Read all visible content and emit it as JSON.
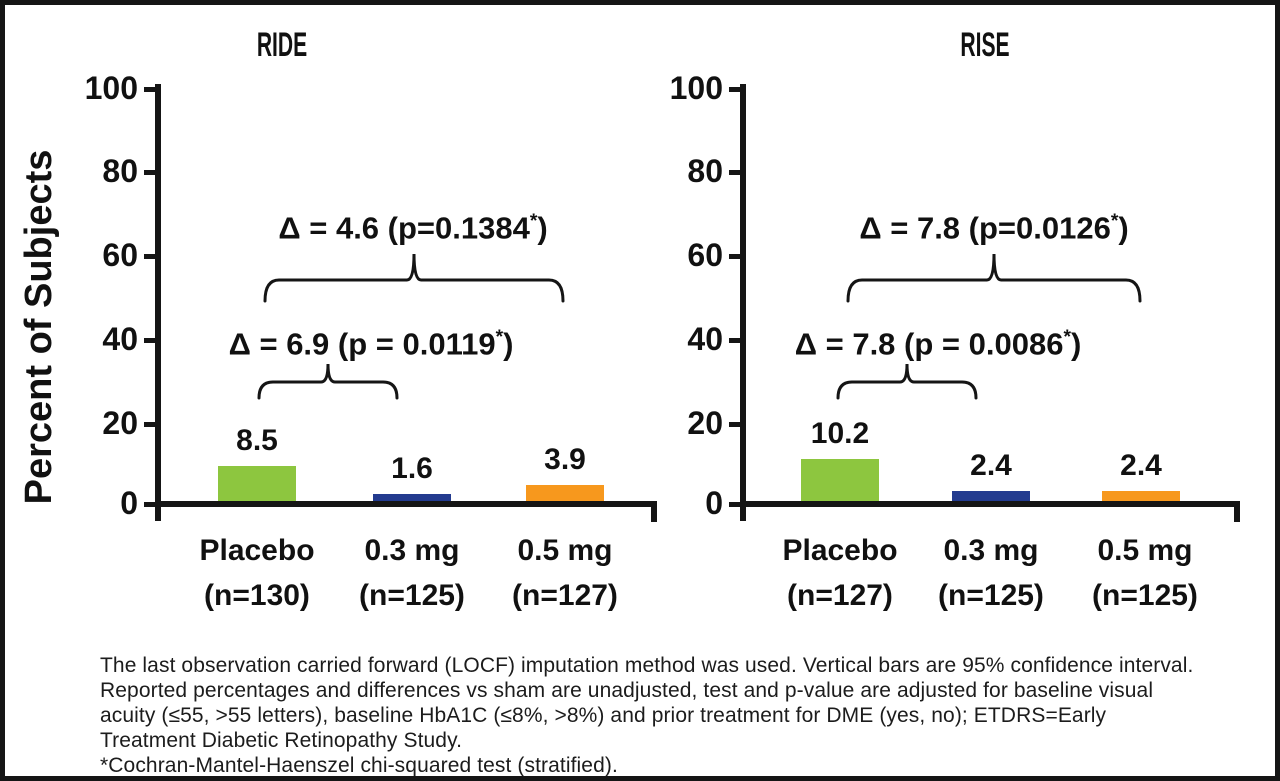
{
  "y_axis_label": "Percent of Subjects",
  "charts": [
    {
      "title": "RIDE",
      "y_ticks": [
        "100",
        "80",
        "60",
        "40",
        "20",
        "0"
      ],
      "annotations": {
        "overall": "Δ = 4.6 (p=0.1384*)",
        "pairwise": "Δ = 6.9 (p = 0.0119*)"
      },
      "bars": [
        {
          "group": "Placebo",
          "n": "(n=130)",
          "value": 8.5,
          "label": "8.5",
          "color": "#8DC63F"
        },
        {
          "group": "0.3 mg",
          "n": "(n=125)",
          "value": 1.6,
          "label": "1.6",
          "color": "#233B8F"
        },
        {
          "group": "0.5 mg",
          "n": "(n=127)",
          "value": 3.9,
          "label": "3.9",
          "color": "#F7981D"
        }
      ]
    },
    {
      "title": "RISE",
      "y_ticks": [
        "100",
        "80",
        "60",
        "40",
        "20",
        "0"
      ],
      "annotations": {
        "overall": "Δ = 7.8 (p=0.0126*)",
        "pairwise": "Δ = 7.8 (p = 0.0086*)"
      },
      "bars": [
        {
          "group": "Placebo",
          "n": "(n=127)",
          "value": 10.2,
          "label": "10.2",
          "color": "#8DC63F"
        },
        {
          "group": "0.3 mg",
          "n": "(n=125)",
          "value": 2.4,
          "label": "2.4",
          "color": "#233B8F"
        },
        {
          "group": "0.5 mg",
          "n": "(n=125)",
          "value": 2.4,
          "label": "2.4",
          "color": "#F7981D"
        }
      ]
    }
  ],
  "footnote": {
    "lines": [
      "The last observation carried forward (LOCF) imputation method was used. Vertical bars are 95% confidence interval.",
      "Reported percentages and differences vs sham are unadjusted, test and p-value are adjusted for baseline visual",
      "acuity (≤55, >55 letters), baseline HbA1C (≤8%, >8%) and prior treatment for DME (yes, no); ETDRS=Early",
      "Treatment Diabetic Retinopathy Study.",
      "*Cochran-Mantel-Haenszel chi-squared test (stratified)."
    ]
  },
  "chart_data": [
    {
      "type": "bar",
      "title": "RIDE",
      "xlabel": "",
      "ylabel": "Percent of Subjects",
      "ylim": [
        0,
        100
      ],
      "yticks": [
        0,
        20,
        40,
        60,
        80,
        100
      ],
      "grid": false,
      "categories": [
        "Placebo (n=130)",
        "0.3 mg (n=125)",
        "0.5 mg (n=127)"
      ],
      "values": [
        8.5,
        1.6,
        3.9
      ],
      "bar_colors": [
        "#8DC63F",
        "#233B8F",
        "#F7981D"
      ],
      "annotations": [
        {
          "text": "Δ = 6.9 (p = 0.0119*)",
          "compares": [
            "Placebo",
            "0.3 mg"
          ]
        },
        {
          "text": "Δ = 4.6 (p=0.1384*)",
          "compares": [
            "Placebo",
            "0.5 mg"
          ]
        }
      ]
    },
    {
      "type": "bar",
      "title": "RISE",
      "xlabel": "",
      "ylabel": "Percent of Subjects",
      "ylim": [
        0,
        100
      ],
      "yticks": [
        0,
        20,
        40,
        60,
        80,
        100
      ],
      "grid": false,
      "categories": [
        "Placebo (n=127)",
        "0.3 mg (n=125)",
        "0.5 mg (n=125)"
      ],
      "values": [
        10.2,
        2.4,
        2.4
      ],
      "bar_colors": [
        "#8DC63F",
        "#233B8F",
        "#F7981D"
      ],
      "annotations": [
        {
          "text": "Δ = 7.8 (p = 0.0086*)",
          "compares": [
            "Placebo",
            "0.3 mg"
          ]
        },
        {
          "text": "Δ = 7.8 (p=0.0126*)",
          "compares": [
            "Placebo",
            "0.5 mg"
          ]
        }
      ]
    }
  ]
}
